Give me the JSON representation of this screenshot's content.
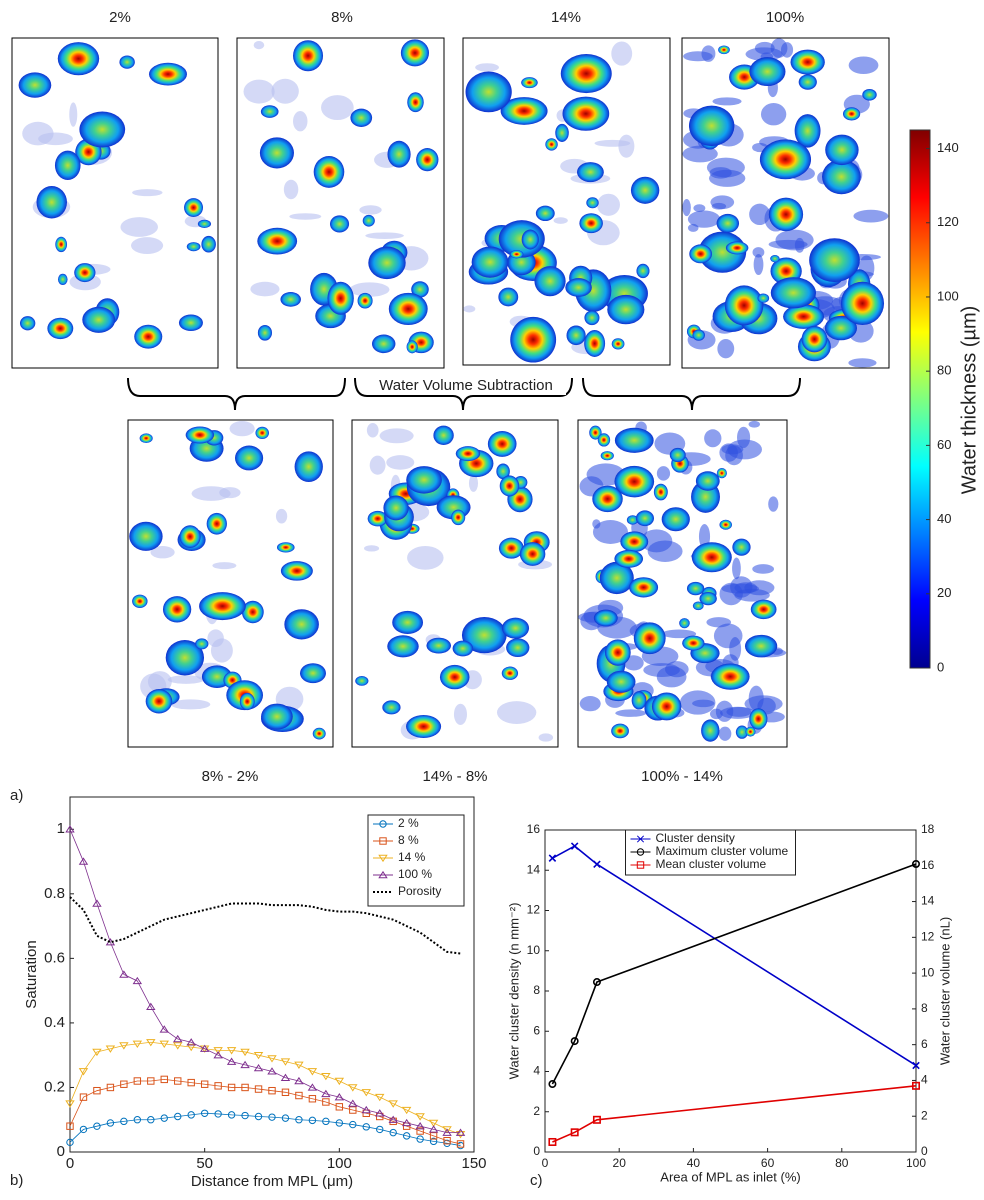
{
  "panel_a": {
    "label": "a)",
    "top_titles": [
      "2%",
      "8%",
      "14%",
      "100%"
    ],
    "subtraction_label": "Water Volume Subtraction",
    "bottom_titles": [
      "8% - 2%",
      "14% - 8%",
      "100% - 14%"
    ],
    "colorbar": {
      "label": "Water thickness (µm)",
      "lim": [
        0,
        145
      ],
      "ticks": [
        0,
        20,
        40,
        60,
        80,
        100,
        120,
        140
      ]
    }
  },
  "chart_data": [
    {
      "type": "line",
      "panel_label": "b)",
      "xlabel": "Distance from MPL (μm)",
      "ylabel": "Saturation",
      "x": [
        0,
        5,
        10,
        15,
        20,
        25,
        30,
        35,
        40,
        45,
        50,
        55,
        60,
        65,
        70,
        75,
        80,
        85,
        90,
        95,
        100,
        105,
        110,
        115,
        120,
        125,
        130,
        135,
        140,
        145
      ],
      "xlim": [
        0,
        150
      ],
      "xticks": [
        0,
        50,
        100,
        150
      ],
      "ylim": [
        0,
        1.1
      ],
      "yticks": [
        0,
        0.2,
        0.4,
        0.6,
        0.8,
        1
      ],
      "legend": "upper right",
      "series": [
        {
          "name": "2 %",
          "color": "#0072bd",
          "marker": "o",
          "values": [
            0.03,
            0.07,
            0.08,
            0.09,
            0.095,
            0.1,
            0.1,
            0.105,
            0.11,
            0.115,
            0.12,
            0.118,
            0.115,
            0.113,
            0.11,
            0.108,
            0.105,
            0.1,
            0.098,
            0.095,
            0.09,
            0.085,
            0.078,
            0.07,
            0.06,
            0.05,
            0.04,
            0.033,
            0.027,
            0.02
          ]
        },
        {
          "name": "8 %",
          "color": "#d95319",
          "marker": "s",
          "values": [
            0.08,
            0.17,
            0.19,
            0.2,
            0.21,
            0.22,
            0.22,
            0.225,
            0.22,
            0.215,
            0.21,
            0.205,
            0.2,
            0.2,
            0.195,
            0.19,
            0.185,
            0.175,
            0.165,
            0.155,
            0.14,
            0.13,
            0.12,
            0.11,
            0.095,
            0.08,
            0.065,
            0.05,
            0.035,
            0.025
          ]
        },
        {
          "name": "14 %",
          "color": "#edb120",
          "marker": "v",
          "values": [
            0.15,
            0.25,
            0.31,
            0.32,
            0.33,
            0.335,
            0.34,
            0.335,
            0.33,
            0.325,
            0.32,
            0.315,
            0.315,
            0.31,
            0.3,
            0.29,
            0.28,
            0.27,
            0.25,
            0.235,
            0.22,
            0.2,
            0.185,
            0.17,
            0.15,
            0.13,
            0.11,
            0.09,
            0.07,
            0.055
          ]
        },
        {
          "name": "100 %",
          "color": "#7e2f8e",
          "marker": "^",
          "values": [
            1.0,
            0.9,
            0.77,
            0.65,
            0.55,
            0.53,
            0.45,
            0.38,
            0.35,
            0.34,
            0.32,
            0.3,
            0.28,
            0.27,
            0.26,
            0.25,
            0.23,
            0.22,
            0.2,
            0.18,
            0.17,
            0.15,
            0.13,
            0.12,
            0.1,
            0.09,
            0.08,
            0.07,
            0.06,
            0.06
          ]
        },
        {
          "name": "Porosity",
          "color": "#000000",
          "dash": "dotted",
          "values": [
            0.79,
            0.75,
            0.67,
            0.65,
            0.66,
            0.68,
            0.7,
            0.72,
            0.73,
            0.74,
            0.75,
            0.76,
            0.77,
            0.77,
            0.77,
            0.765,
            0.765,
            0.765,
            0.76,
            0.75,
            0.745,
            0.745,
            0.74,
            0.73,
            0.72,
            0.7,
            0.68,
            0.65,
            0.62,
            0.615
          ]
        }
      ]
    },
    {
      "type": "line",
      "panel_label": "c)",
      "xlabel": "Area of MPL as inlet (%)",
      "ylabel": "Water cluster density (n mm⁻²)",
      "y2label": "Water cluster volume (nL)",
      "x": [
        2,
        8,
        14,
        100
      ],
      "xlim": [
        0,
        100
      ],
      "xticks": [
        0,
        20,
        40,
        60,
        80,
        100
      ],
      "ylim": [
        0,
        16
      ],
      "yticks": [
        0,
        2,
        4,
        6,
        8,
        10,
        12,
        14,
        16
      ],
      "y2lim": [
        0,
        18
      ],
      "y2ticks": [
        0,
        2,
        4,
        6,
        8,
        10,
        12,
        14,
        16,
        18
      ],
      "legend": "upper center",
      "series": [
        {
          "name": "Cluster density",
          "color": "#0000c8",
          "marker": "x",
          "values": [
            14.6,
            15.2,
            14.3,
            4.3
          ]
        },
        {
          "name": "Maximum cluster volume",
          "color": "#000000",
          "marker": "o",
          "axis": "y2",
          "values": [
            3.8,
            6.2,
            9.5,
            16.1
          ]
        },
        {
          "name": "Mean cluster volume",
          "color": "#e00000",
          "marker": "s",
          "axis": "y2",
          "values": [
            0.56,
            1.1,
            1.8,
            3.7
          ]
        }
      ]
    }
  ]
}
